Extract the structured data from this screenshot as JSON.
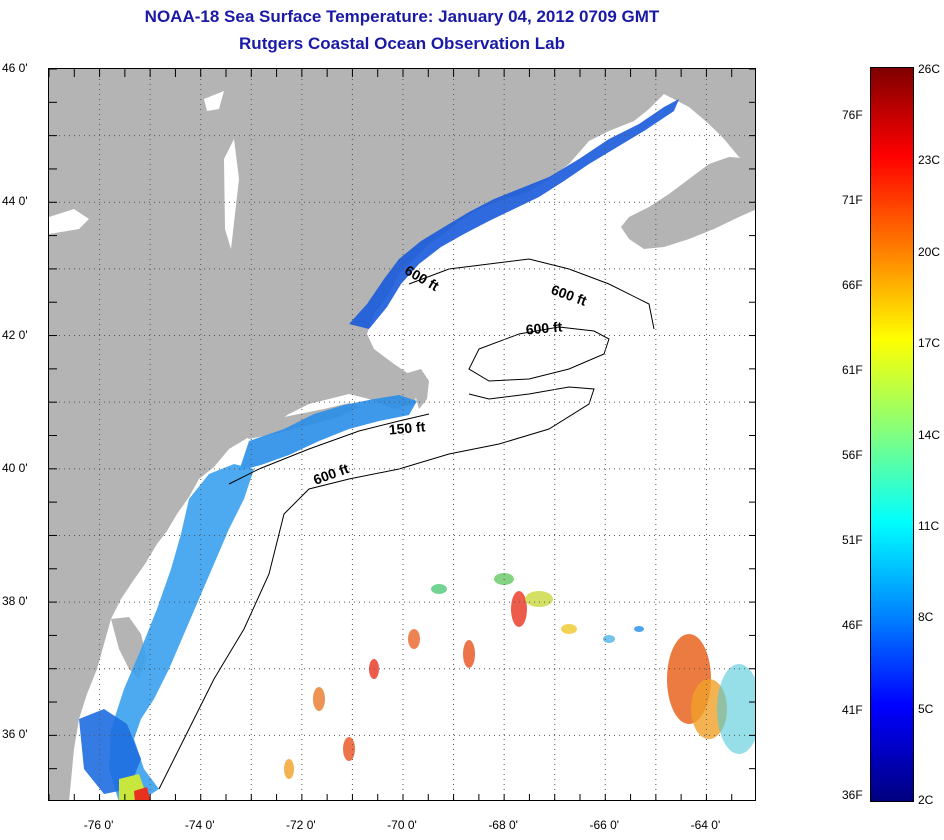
{
  "title": {
    "line1": "NOAA-18 Sea Surface Temperature:  January 04, 2012 0709 GMT",
    "line2": "Rutgers Coastal Ocean Observation Lab"
  },
  "map": {
    "lon_range": [
      -77,
      -63
    ],
    "lat_range": [
      35,
      46
    ],
    "lat_labels": [
      {
        "lat": 46,
        "text": "46 0'"
      },
      {
        "lat": 44,
        "text": "44 0'"
      },
      {
        "lat": 42,
        "text": "42 0'"
      },
      {
        "lat": 40,
        "text": "40 0'"
      },
      {
        "lat": 38,
        "text": "38 0'"
      },
      {
        "lat": 36,
        "text": "36 0'"
      }
    ],
    "lon_labels": [
      {
        "lon": -76,
        "text": "-76 0'"
      },
      {
        "lon": -74,
        "text": "-74 0'"
      },
      {
        "lon": -72,
        "text": "-72 0'"
      },
      {
        "lon": -70,
        "text": "-70 0'"
      },
      {
        "lon": -68,
        "text": "-68 0'"
      },
      {
        "lon": -66,
        "text": "-66 0'"
      },
      {
        "lon": -64,
        "text": "-64 0'"
      }
    ],
    "contour_labels": [
      {
        "text": "600 ft",
        "lon": -69.6,
        "lat": 42.85,
        "rotate": 30
      },
      {
        "text": "600 ft",
        "lon": -66.7,
        "lat": 42.6,
        "rotate": 20
      },
      {
        "text": "600 ft",
        "lon": -67.2,
        "lat": 42.1,
        "rotate": -5
      },
      {
        "text": "150 ft",
        "lon": -69.9,
        "lat": 40.6,
        "rotate": -5
      },
      {
        "text": "600 ft",
        "lon": -71.4,
        "lat": 39.9,
        "rotate": -20
      }
    ],
    "colors": {
      "land": "#b4b4b4",
      "water_nodata": "#ffffff",
      "grid": "#555555"
    }
  },
  "colorbar": {
    "fahrenheit_labels": [
      "76F",
      "71F",
      "66F",
      "61F",
      "56F",
      "51F",
      "46F",
      "41F",
      "36F"
    ],
    "celsius_labels": [
      "26C",
      "23C",
      "20C",
      "17C",
      "14C",
      "11C",
      "8C",
      "5C",
      "2C"
    ],
    "min_c": 2,
    "max_c": 26
  }
}
